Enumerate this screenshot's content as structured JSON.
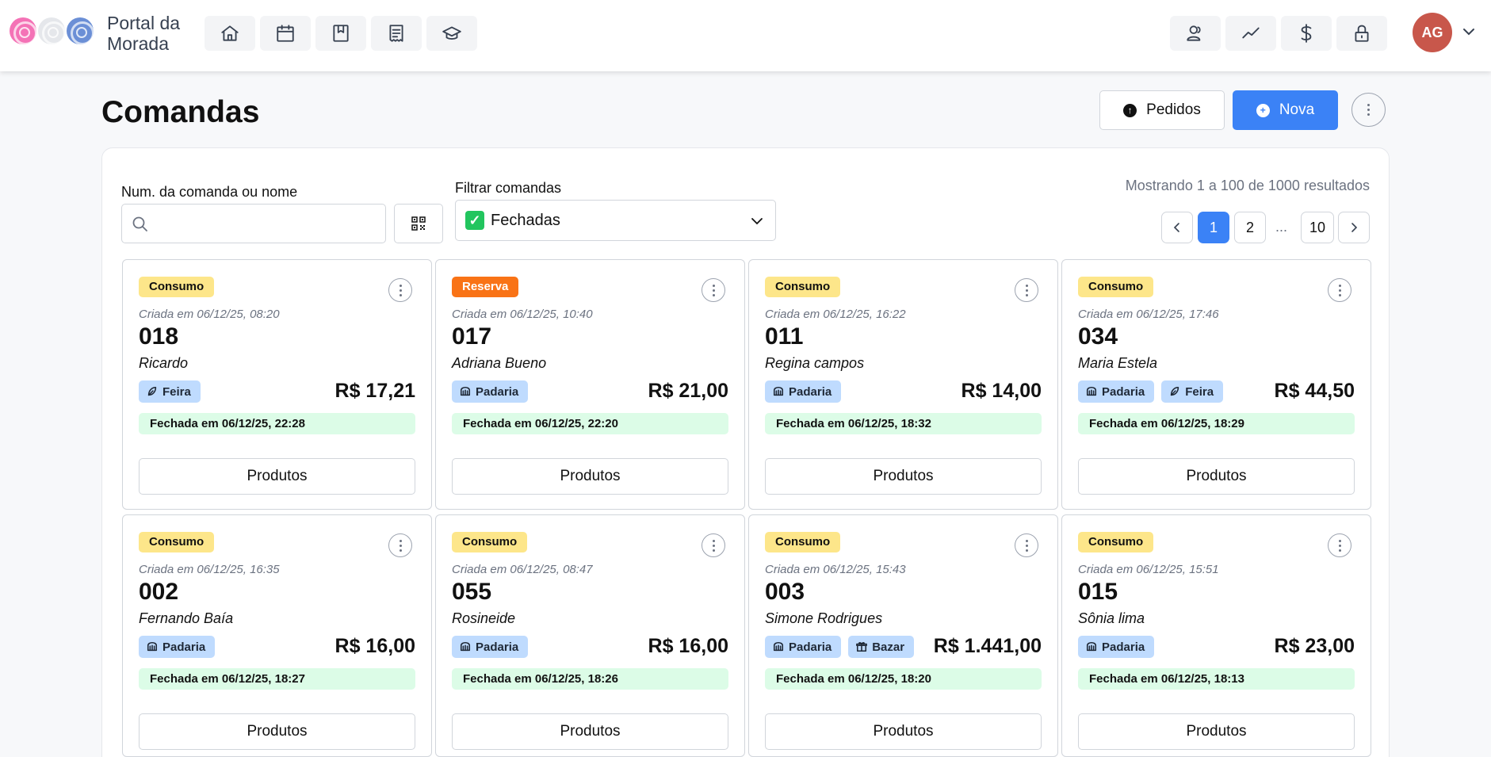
{
  "app": {
    "brand_line1": "Portal da",
    "brand_line2": "Morada",
    "avatar_initials": "AG"
  },
  "colors": {
    "primary": "#3b82f6",
    "avatar": "#c8574b",
    "consumo_bg": "#fde68a",
    "reserva_bg": "#f97316",
    "tag_bg": "#bfdbfe",
    "closed_bg": "#dcfce7",
    "rose_pink": "#f472b6",
    "rose_white": "#e5e7eb",
    "rose_blue": "#6b8fd6"
  },
  "nav_icons": [
    "home-icon",
    "calendar-icon",
    "bookmark-book-icon",
    "receipt-icon",
    "graduation-cap-icon"
  ],
  "right_nav_icons": [
    "users-icon",
    "trend-line-icon",
    "dollar-icon",
    "lock-icon"
  ],
  "header": {
    "title": "Comandas",
    "pedidos_label": "Pedidos",
    "nova_label": "Nova"
  },
  "filters": {
    "search_label": "Num. da comanda ou nome",
    "search_value": "",
    "search_placeholder": "",
    "filter_label": "Filtrar comandas",
    "filter_value": "Fechadas"
  },
  "pagination": {
    "results_text": "Mostrando 1 a 100 de 1000 resultados",
    "pages": [
      "1",
      "2",
      "10"
    ],
    "dots": "...",
    "current": "1"
  },
  "cards": [
    {
      "type": "Consumo",
      "created": "Criada em 06/12/25, 08:20",
      "number": "018",
      "name": "Ricardo",
      "tags": [
        {
          "label": "Feira",
          "icon": "leaf-icon"
        }
      ],
      "price": "R$ 17,21",
      "closed": "Fechada em 06/12/25, 22:28",
      "button": "Produtos"
    },
    {
      "type": "Reserva",
      "created": "Criada em 06/12/25, 10:40",
      "number": "017",
      "name": "Adriana Bueno",
      "tags": [
        {
          "label": "Padaria",
          "icon": "bread-icon"
        }
      ],
      "price": "R$ 21,00",
      "closed": "Fechada em 06/12/25, 22:20",
      "button": "Produtos"
    },
    {
      "type": "Consumo",
      "created": "Criada em 06/12/25, 16:22",
      "number": "011",
      "name": "Regina campos",
      "tags": [
        {
          "label": "Padaria",
          "icon": "bread-icon"
        }
      ],
      "price": "R$ 14,00",
      "closed": "Fechada em 06/12/25, 18:32",
      "button": "Produtos"
    },
    {
      "type": "Consumo",
      "created": "Criada em 06/12/25, 17:46",
      "number": "034",
      "name": "Maria Estela",
      "tags": [
        {
          "label": "Padaria",
          "icon": "bread-icon"
        },
        {
          "label": "Feira",
          "icon": "leaf-icon"
        }
      ],
      "price": "R$ 44,50",
      "closed": "Fechada em 06/12/25, 18:29",
      "button": "Produtos"
    },
    {
      "type": "Consumo",
      "created": "Criada em 06/12/25, 16:35",
      "number": "002",
      "name": "Fernando Baía",
      "tags": [
        {
          "label": "Padaria",
          "icon": "bread-icon"
        }
      ],
      "price": "R$ 16,00",
      "closed": "Fechada em 06/12/25, 18:27",
      "button": "Produtos"
    },
    {
      "type": "Consumo",
      "created": "Criada em 06/12/25, 08:47",
      "number": "055",
      "name": "Rosineide",
      "tags": [
        {
          "label": "Padaria",
          "icon": "bread-icon"
        }
      ],
      "price": "R$ 16,00",
      "closed": "Fechada em 06/12/25, 18:26",
      "button": "Produtos"
    },
    {
      "type": "Consumo",
      "created": "Criada em 06/12/25, 15:43",
      "number": "003",
      "name": "Simone Rodrigues",
      "tags": [
        {
          "label": "Padaria",
          "icon": "bread-icon"
        },
        {
          "label": "Bazar",
          "icon": "gift-icon"
        }
      ],
      "price": "R$ 1.441,00",
      "closed": "Fechada em 06/12/25, 18:20",
      "button": "Produtos"
    },
    {
      "type": "Consumo",
      "created": "Criada em 06/12/25, 15:51",
      "number": "015",
      "name": "Sônia lima",
      "tags": [
        {
          "label": "Padaria",
          "icon": "bread-icon"
        }
      ],
      "price": "R$ 23,00",
      "closed": "Fechada em 06/12/25, 18:13",
      "button": "Produtos"
    }
  ]
}
